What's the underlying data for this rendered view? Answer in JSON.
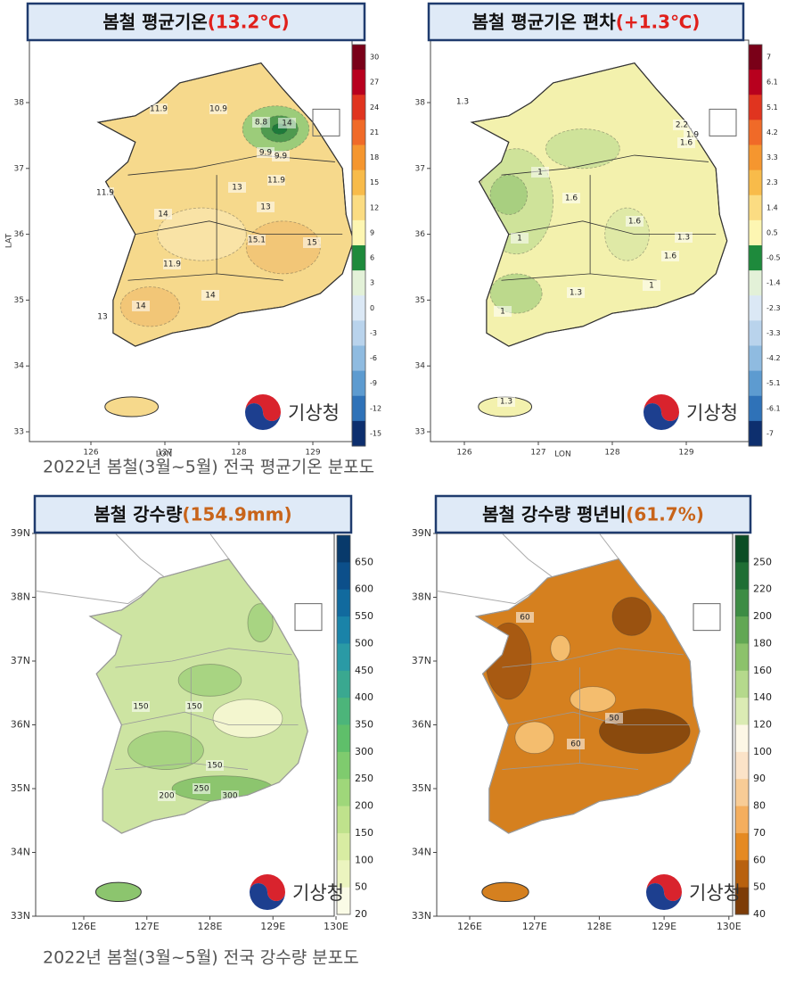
{
  "panels": [
    {
      "title": {
        "text": "봄철 평균기온",
        "value": "(13.2℃)"
      },
      "colorbar": [
        30,
        27,
        24,
        21,
        18,
        15,
        12,
        9,
        6,
        3,
        0,
        -3,
        -6,
        -9,
        -12,
        -15
      ],
      "yticks": [
        38,
        37,
        36,
        35,
        34,
        33
      ],
      "xticks": [
        126,
        127,
        128,
        129
      ],
      "ylabel": "LAT",
      "xlabel": "LON",
      "contour_labels": [
        "11.9",
        "10.9",
        "8.8",
        "14",
        "9.9",
        "9.9",
        "13",
        "11.9",
        "13",
        "14",
        "15.1",
        "15",
        "11.9",
        "14",
        "14",
        "13",
        "11.9"
      ],
      "logo": "기상청"
    },
    {
      "title": {
        "text": "봄철 평균기온 편차",
        "value": "(+1.3℃)"
      },
      "colorbar": [
        7,
        6.1,
        5.1,
        4.2,
        3.3,
        2.3,
        1.4,
        0.5,
        -0.5,
        -1.4,
        -2.3,
        -3.3,
        -4.2,
        -5.1,
        -6.1,
        -7
      ],
      "yticks": [
        38,
        37,
        36,
        35,
        34,
        33
      ],
      "xticks": [
        126,
        127,
        128,
        129
      ],
      "xlabel": "LON",
      "contour_labels": [
        "1.3",
        "2.2",
        "1.9",
        "1.6",
        "1",
        "1.6",
        "1.6",
        "1.3",
        "1.6",
        "1",
        "1.3",
        "1",
        "1",
        "1.3"
      ],
      "logo": "기상청"
    },
    {
      "title": {
        "text": "봄철 강수량",
        "value": "(154.9mm)"
      },
      "colorbar": [
        650,
        600,
        550,
        500,
        450,
        400,
        350,
        300,
        250,
        200,
        150,
        100,
        50,
        20
      ],
      "yticks": [
        "39N",
        "38N",
        "37N",
        "36N",
        "35N",
        "34N",
        "33N"
      ],
      "xticks": [
        "126E",
        "127E",
        "128E",
        "129E",
        "130E"
      ],
      "contour_labels": [
        "150",
        "150",
        "150",
        "200",
        "250",
        "300"
      ],
      "logo": "기상청"
    },
    {
      "title": {
        "text": "봄철 강수량 평년비",
        "value": "(61.7%)"
      },
      "colorbar": [
        250,
        220,
        200,
        180,
        160,
        140,
        120,
        100,
        90,
        80,
        70,
        60,
        50,
        40
      ],
      "yticks": [
        "39N",
        "38N",
        "37N",
        "36N",
        "35N",
        "34N",
        "33N"
      ],
      "xticks": [
        "126E",
        "127E",
        "128E",
        "129E",
        "130E"
      ],
      "contour_labels": [
        "60",
        "50",
        "60"
      ],
      "logo": "기상청"
    }
  ],
  "captions": [
    "2022년 봄철(3월~5월) 전국 평균기온 분포도",
    "2022년 봄철(3월~5월) 전국 강수량 분포도"
  ]
}
